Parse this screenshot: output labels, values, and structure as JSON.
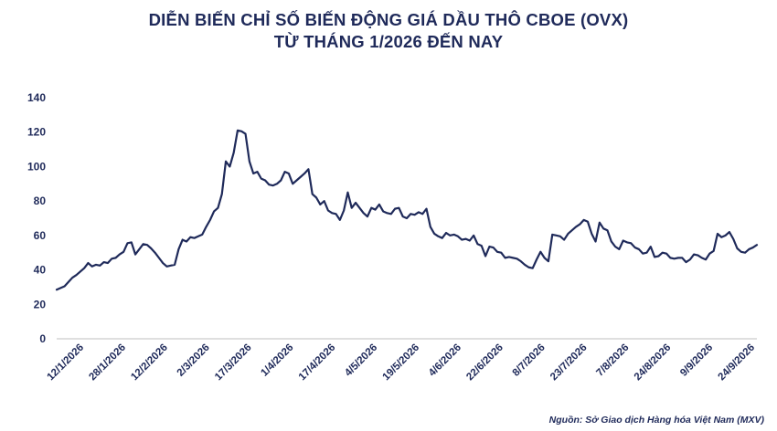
{
  "title_line1": "DIỄN BIẾN CHỈ SỐ BIẾN ĐỘNG GIÁ DẦU THÔ CBOE (OVX)",
  "title_line2": "TỪ THÁNG 1/2026 ĐẾN NAY",
  "source": "Nguồn: Sở Giao dịch Hàng hóa Việt Nam (MXV)",
  "colors": {
    "line": "#1f2a5a",
    "text": "#1f2a5a",
    "axis": "#bfbfbf"
  },
  "chart_data": {
    "type": "line",
    "title": "DIỄN BIẾN CHỈ SỐ BIẾN ĐỘNG GIÁ DẦU THÔ CBOE (OVX) TỪ THÁNG 1/2026 ĐẾN NAY",
    "xlabel": "",
    "ylabel": "",
    "ylim": [
      0,
      140
    ],
    "yticks": [
      0,
      20,
      40,
      60,
      80,
      100,
      120,
      140
    ],
    "xticks": [
      "12/1/2026",
      "28/1/2026",
      "12/2/2026",
      "2/3/2026",
      "17/3/2026",
      "1/4/2026",
      "17/4/2026",
      "4/5/2026",
      "19/5/2026",
      "4/6/2026",
      "22/6/2026",
      "8/7/2026",
      "23/7/2026",
      "7/8/2026",
      "24/8/2026",
      "9/9/2026",
      "24/9/2026"
    ],
    "grid": false,
    "legend": "none",
    "series": [
      {
        "values": [
          28.5,
          29.5,
          30.5,
          33.0,
          35.5,
          37.0,
          39.0,
          41.0,
          44.0,
          42.0,
          43.0,
          42.5,
          44.5,
          44.0,
          46.5,
          47.0,
          49.0,
          50.5,
          55.5,
          56.0,
          49.0,
          52.0,
          55.0,
          54.5,
          52.5,
          50.0,
          47.0,
          44.0,
          42.0,
          42.5,
          43.0,
          52.0,
          57.5,
          56.5,
          59.0,
          58.5,
          59.5,
          60.5,
          65.0,
          69.0,
          74.0,
          76.0,
          84.0,
          103.0,
          100.0,
          108.0,
          121.0,
          120.5,
          119.0,
          103.0,
          96.0,
          97.0,
          93.0,
          92.0,
          89.5,
          89.0,
          90.0,
          92.0,
          97.0,
          96.0,
          90.0,
          92.0,
          94.0,
          96.0,
          98.5,
          84.0,
          82.0,
          78.0,
          80.0,
          74.5,
          73.0,
          72.5,
          69.0,
          74.5,
          85.0,
          76.0,
          79.0,
          76.0,
          73.0,
          71.0,
          76.0,
          75.0,
          78.0,
          74.0,
          73.0,
          72.5,
          75.5,
          76.0,
          71.0,
          70.0,
          72.5,
          72.0,
          73.5,
          72.5,
          75.5,
          65.0,
          61.0,
          59.5,
          58.5,
          61.5,
          60.0,
          60.5,
          59.5,
          57.5,
          58.0,
          57.0,
          60.0,
          55.0,
          54.0,
          48.0,
          53.5,
          53.0,
          50.5,
          50.0,
          47.0,
          47.5,
          47.0,
          46.5,
          45.0,
          43.0,
          41.5,
          41.0,
          46.0,
          50.5,
          47.0,
          45.0,
          60.5,
          60.0,
          59.5,
          57.5,
          61.0,
          63.0,
          65.0,
          66.5,
          69.0,
          68.0,
          61.0,
          56.5,
          67.5,
          64.0,
          63.0,
          56.5,
          53.5,
          52.0,
          57.0,
          56.0,
          55.5,
          53.0,
          52.0,
          49.5,
          50.0,
          53.5,
          47.5,
          48.0,
          50.0,
          49.5,
          47.0,
          46.5,
          47.0,
          47.0,
          44.5,
          46.0,
          49.0,
          48.5,
          47.0,
          46.0,
          49.5,
          51.0,
          61.0,
          59.0,
          60.0,
          62.0,
          58.0,
          52.5,
          50.5,
          50.0,
          52.0,
          53.0,
          54.5
        ]
      }
    ]
  }
}
